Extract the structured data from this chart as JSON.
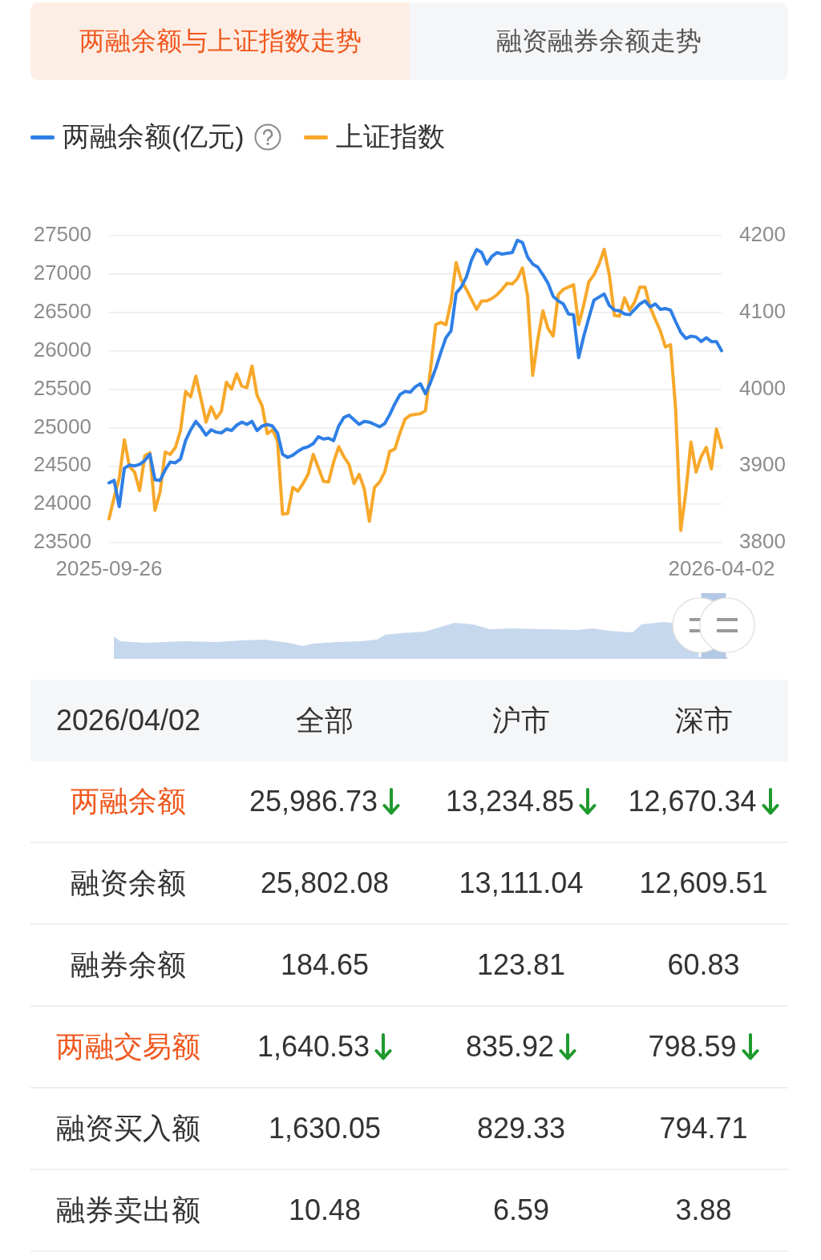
{
  "chart_data": [
    {
      "type": "other",
      "annotations": [
        "两融余额与上证指数走势",
        "融资融券余额走势"
      ]
    },
    {
      "type": "line",
      "legend": "top left",
      "grid": "y",
      "marker": "none",
      "categories": [
        "2025-09-26",
        null,
        null,
        null,
        null,
        null,
        null,
        null,
        null,
        null,
        null,
        null,
        null,
        null,
        null,
        null,
        null,
        null,
        null,
        null,
        null,
        null,
        null,
        null,
        null,
        null,
        null,
        null,
        null,
        null,
        null,
        null,
        null,
        null,
        null,
        null,
        null,
        null,
        null,
        null,
        null,
        null,
        null,
        null,
        null,
        null,
        null,
        null,
        null,
        null,
        null,
        null,
        null,
        null,
        null,
        null,
        null,
        null,
        null,
        null,
        null,
        null,
        null,
        null,
        null,
        null,
        null,
        null,
        null,
        null,
        null,
        null,
        null,
        null,
        null,
        null,
        null,
        null,
        null,
        null,
        null,
        null,
        null,
        null,
        null,
        null,
        null,
        null,
        null,
        null,
        null,
        null,
        null,
        null,
        null,
        null,
        null,
        null,
        null,
        null,
        null,
        null,
        null,
        null,
        null,
        null,
        null,
        null,
        null,
        null,
        null,
        null,
        null,
        null,
        null,
        null,
        null,
        null,
        null,
        null,
        "2026-04-02"
      ],
      "series": [
        {
          "name": "两融余额(亿元)",
          "color": "#2f7fe6",
          "values": [
            24280,
            24310,
            23970,
            24470,
            24510,
            24500,
            24520,
            24570,
            24650,
            24320,
            24310,
            24450,
            24550,
            24540,
            24590,
            24830,
            24970,
            25080,
            25000,
            24900,
            24970,
            24940,
            24930,
            24980,
            24960,
            25030,
            25070,
            25040,
            25080,
            24960,
            25020,
            25040,
            25020,
            24930,
            24650,
            24610,
            24640,
            24690,
            24730,
            24750,
            24790,
            24880,
            24850,
            24860,
            24830,
            25020,
            25130,
            25160,
            25100,
            25040,
            25080,
            25070,
            25040,
            25010,
            25050,
            25170,
            25310,
            25430,
            25470,
            25460,
            25530,
            25570,
            25440,
            25590,
            25770,
            25980,
            26170,
            26260,
            26750,
            26830,
            26960,
            27180,
            27320,
            27280,
            27130,
            27230,
            27280,
            27260,
            27270,
            27280,
            27440,
            27410,
            27220,
            27130,
            27090,
            26990,
            26880,
            26710,
            26650,
            26610,
            26480,
            26470,
            25910,
            26190,
            26430,
            26660,
            26700,
            26740,
            26590,
            26530,
            26520,
            26480,
            26470,
            26540,
            26610,
            26650,
            26570,
            26610,
            26540,
            26550,
            26530,
            26380,
            26240,
            26160,
            26190,
            26180,
            26120,
            26170,
            26120,
            26120,
            26000
          ]
        },
        {
          "name": "上证指数",
          "color": "#f7a82a",
          "axis": "y2",
          "values": [
            3831,
            3859,
            3884,
            3934,
            3899,
            3892,
            3868,
            3913,
            3917,
            3842,
            3866,
            3918,
            3915,
            3924,
            3946,
            3997,
            3990,
            4017,
            3988,
            3957,
            3977,
            3962,
            3971,
            4009,
            4000,
            4020,
            4004,
            4002,
            4030,
            3992,
            3978,
            3942,
            3947,
            3933,
            3837,
            3838,
            3872,
            3867,
            3877,
            3889,
            3915,
            3898,
            3880,
            3879,
            3905,
            3925,
            3912,
            3902,
            3877,
            3889,
            3870,
            3828,
            3872,
            3879,
            3892,
            3919,
            3922,
            3943,
            3961,
            3966,
            3967,
            3968,
            3972,
            4027,
            4084,
            4087,
            4084,
            4114,
            4165,
            4142,
            4130,
            4117,
            4104,
            4115,
            4115,
            4118,
            4123,
            4130,
            4138,
            4137,
            4144,
            4158,
            4121,
            4018,
            4065,
            4102,
            4079,
            4069,
            4123,
            4130,
            4133,
            4136,
            4084,
            4110,
            4140,
            4149,
            4163,
            4182,
            4149,
            4096,
            4095,
            4119,
            4103,
            4114,
            4133,
            4133,
            4107,
            4091,
            4076,
            4055,
            4058,
            3974,
            3816,
            3866,
            3931,
            3892,
            3912,
            3924,
            3896,
            3948,
            3924
          ]
        }
      ],
      "ylim": [
        23500,
        27500
      ],
      "yticks": [
        23500,
        24000,
        24500,
        25000,
        25500,
        26000,
        26500,
        27000,
        27500
      ],
      "y2lim": [
        3800,
        4200
      ],
      "y2ticks": [
        3800,
        3900,
        4000,
        4100,
        4200
      ]
    },
    {
      "type": "other",
      "title": "2026/04/02",
      "categories": [
        "全部",
        "沪市",
        "深市"
      ],
      "series": [
        {
          "name": "两融余额",
          "color": "#f0581e",
          "values": [
            25986.73,
            13234.85,
            12670.34
          ],
          "value_labels": [
            "25,986.73",
            "13,234.85",
            "12,670.34"
          ]
        },
        {
          "name": "融资余额",
          "values": [
            25802.08,
            13111.04,
            12609.51
          ],
          "value_labels": [
            "25,802.08",
            "13,111.04",
            "12,609.51"
          ]
        },
        {
          "name": "融券余额",
          "values": [
            184.65,
            123.81,
            60.83
          ],
          "value_labels": [
            "184.65",
            "123.81",
            "60.83"
          ]
        },
        {
          "name": "两融交易额",
          "color": "#f0581e",
          "values": [
            1640.53,
            835.92,
            798.59
          ],
          "value_labels": [
            "1,640.53",
            "835.92",
            "798.59"
          ]
        },
        {
          "name": "融资买入额",
          "values": [
            1630.05,
            829.33,
            794.71
          ],
          "value_labels": [
            "1,630.05",
            "829.33",
            "794.71"
          ]
        },
        {
          "name": "融券卖出额",
          "values": [
            10.48,
            6.59,
            3.88
          ],
          "value_labels": [
            "10.48",
            "6.59",
            "3.88"
          ]
        }
      ]
    }
  ]
}
